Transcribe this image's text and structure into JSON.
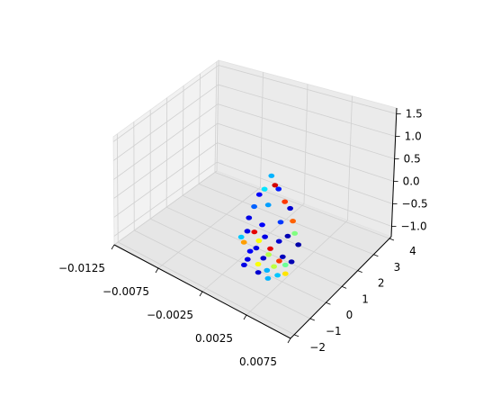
{
  "chart_data": {
    "type": "scatter",
    "projection": "3d",
    "title": "",
    "xlabel": "",
    "ylabel": "",
    "zlabel": "",
    "grid": true,
    "colormap": "jet",
    "xlim": [
      -0.0125,
      0.0075
    ],
    "ylim": [
      -2,
      4
    ],
    "zlim": [
      -1.25,
      1.6
    ],
    "x_ticks": [
      "−0.0125",
      "−0.0075",
      "−0.0025",
      "0.0025",
      "0.0075"
    ],
    "y_ticks": [
      "−2",
      "−1",
      "0",
      "1",
      "2",
      "3",
      "4"
    ],
    "z_ticks": [
      "−1.0",
      "−0.5",
      "0.0",
      "0.5",
      "1.0",
      "1.5"
    ],
    "points": [
      {
        "x": -0.0002,
        "y": 0.9,
        "z": 1.15,
        "c": 0.3
      },
      {
        "x": 0.0002,
        "y": 0.9,
        "z": 0.95,
        "c": 0.92
      },
      {
        "x": 0.0006,
        "y": 0.9,
        "z": 0.9,
        "c": 0.15
      },
      {
        "x": -0.001,
        "y": 0.9,
        "z": 0.7,
        "c": 0.35
      },
      {
        "x": 0.0013,
        "y": 0.9,
        "z": 0.65,
        "c": 0.82
      },
      {
        "x": 0.0019,
        "y": 0.9,
        "z": 0.55,
        "c": 0.08
      },
      {
        "x": -0.0016,
        "y": 0.9,
        "z": 0.48,
        "c": 0.12
      },
      {
        "x": -0.0006,
        "y": 0.9,
        "z": 0.33,
        "c": 0.28
      },
      {
        "x": 0.0022,
        "y": 0.9,
        "z": 0.25,
        "c": 0.78
      },
      {
        "x": -0.0022,
        "y": 0.9,
        "z": 0.09,
        "c": 0.22
      },
      {
        "x": 0.0008,
        "y": 0.9,
        "z": 0.05,
        "c": 0.18
      },
      {
        "x": 0.0024,
        "y": 0.9,
        "z": -0.05,
        "c": 0.5
      },
      {
        "x": -0.0028,
        "y": 0.9,
        "z": -0.28,
        "c": 0.1
      },
      {
        "x": -0.0013,
        "y": 0.9,
        "z": -0.28,
        "c": 0.12
      },
      {
        "x": 0.0016,
        "y": 0.9,
        "z": -0.22,
        "c": 0.05
      },
      {
        "x": 0.0028,
        "y": 0.9,
        "z": -0.3,
        "c": 0.04
      },
      {
        "x": -0.0022,
        "y": 0.9,
        "z": -0.58,
        "c": 0.9
      },
      {
        "x": -0.001,
        "y": 0.9,
        "z": -0.56,
        "c": 0.1
      },
      {
        "x": 0.0006,
        "y": 0.9,
        "z": -0.48,
        "c": 0.08
      },
      {
        "x": -0.003,
        "y": 0.9,
        "z": -0.66,
        "c": 0.1
      },
      {
        "x": -0.0017,
        "y": 0.9,
        "z": -0.75,
        "c": 0.62
      },
      {
        "x": -0.0004,
        "y": 0.9,
        "z": -0.8,
        "c": 0.9
      },
      {
        "x": 0.001,
        "y": 0.9,
        "z": -0.84,
        "c": 0.06
      },
      {
        "x": 0.002,
        "y": 0.9,
        "z": -0.85,
        "c": 0.05
      },
      {
        "x": -0.0037,
        "y": 0.9,
        "z": -0.9,
        "c": 0.32
      },
      {
        "x": -0.0034,
        "y": 0.9,
        "z": -1.0,
        "c": 0.72
      },
      {
        "x": -0.002,
        "y": 0.9,
        "z": -0.98,
        "c": 0.1
      },
      {
        "x": -0.0006,
        "y": 0.9,
        "z": -0.98,
        "c": 0.55
      },
      {
        "x": 0.0006,
        "y": 0.9,
        "z": -1.0,
        "c": 0.82
      },
      {
        "x": 0.0013,
        "y": 0.9,
        "z": -1.02,
        "c": 0.48
      },
      {
        "x": -0.0027,
        "y": 0.9,
        "z": -1.15,
        "c": 0.12
      },
      {
        "x": -0.0012,
        "y": 0.9,
        "z": -1.15,
        "c": 0.08
      },
      {
        "x": 0.0,
        "y": 0.9,
        "z": -1.22,
        "c": 0.56
      },
      {
        "x": 0.0013,
        "y": 0.9,
        "z": -1.25,
        "c": 0.65
      },
      {
        "x": -0.0018,
        "y": 0.9,
        "z": -1.38,
        "c": 0.62
      },
      {
        "x": -0.003,
        "y": 0.9,
        "z": -1.4,
        "c": 0.1
      },
      {
        "x": -0.0008,
        "y": 0.9,
        "z": -1.42,
        "c": 0.3
      },
      {
        "x": 0.0004,
        "y": 0.9,
        "z": -1.4,
        "c": 0.32
      },
      {
        "x": -0.0034,
        "y": 0.9,
        "z": -1.6,
        "c": 0.1
      },
      {
        "x": -0.0018,
        "y": 0.9,
        "z": -1.6,
        "c": 0.08
      },
      {
        "x": -0.0007,
        "y": 0.9,
        "z": -1.62,
        "c": 0.3
      }
    ]
  }
}
